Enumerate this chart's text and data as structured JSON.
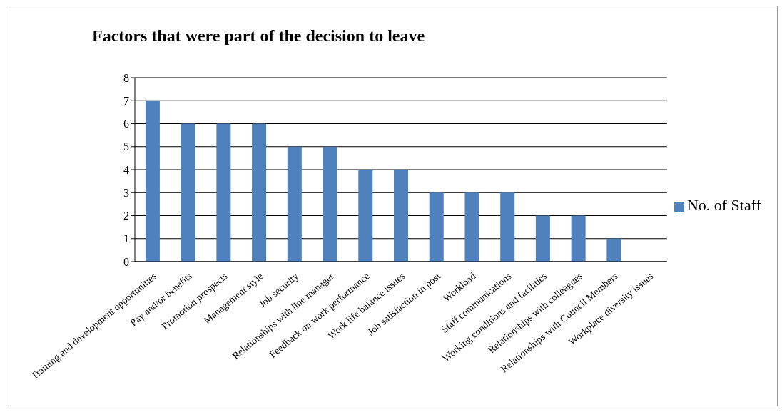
{
  "chart_data": {
    "type": "bar",
    "title": "Factors that were part of the decision to leave",
    "categories": [
      "Training and development opportunities",
      "Pay and/or benefits",
      "Promotion prospects",
      "Management style",
      "Job security",
      "Relationships with line manager",
      "Feedback on work performance",
      "Work life balance issues",
      "Job satisfaction in post",
      "Workload",
      "Staff communications",
      "Working conditions and facilities",
      "Relationships with colleagues",
      "Relationships with Council Members",
      "Workplace diversity issues"
    ],
    "series": [
      {
        "name": "No. of Staff",
        "color": "#4f81bd",
        "values": [
          7,
          6,
          6,
          6,
          5,
          5,
          4,
          4,
          3,
          3,
          3,
          2,
          2,
          1,
          0
        ]
      }
    ],
    "ylim": [
      0,
      8
    ],
    "yticks": [
      0,
      1,
      2,
      3,
      4,
      5,
      6,
      7,
      8
    ],
    "grid": "y",
    "legend": "right"
  }
}
